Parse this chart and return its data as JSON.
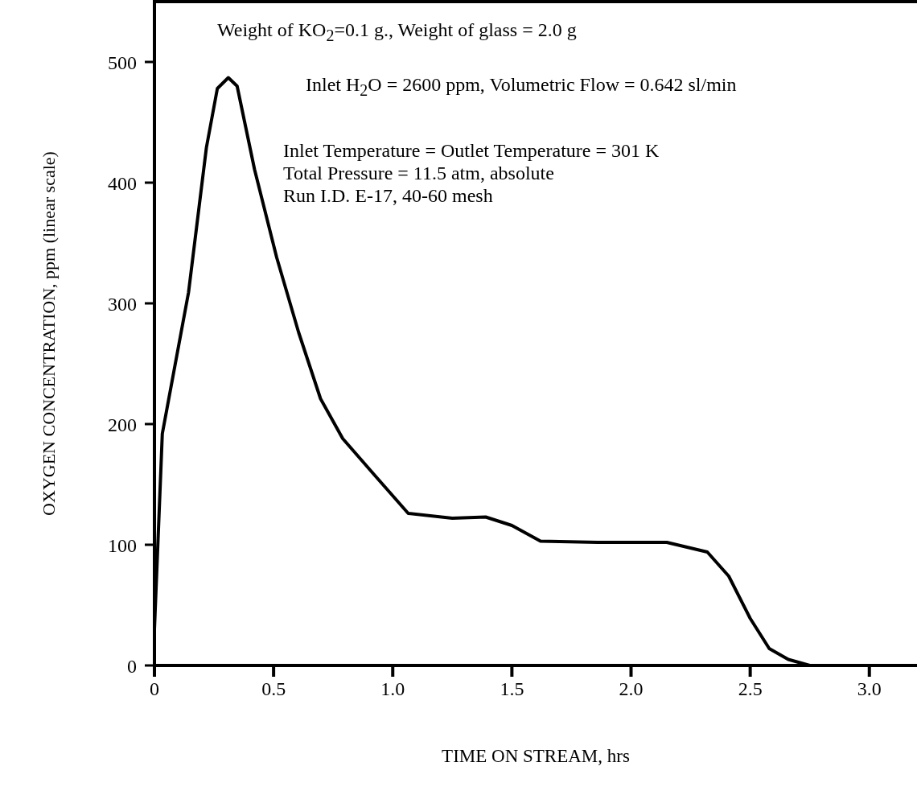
{
  "chart_data": {
    "type": "line",
    "xlabel": "TIME ON STREAM, hrs",
    "ylabel": "OXYGEN CONCENTRATION, ppm (linear scale)",
    "annotations": [
      "Weight of KO$_{2}$=0.1 g., Weight of glass = 2.0 g",
      "Inlet H$_{2}$O = 2600 ppm, Volumetric Flow = 0.642 sl/min",
      "Inlet Temperature = Outlet Temperature = 301 K",
      "Total Pressure = 11.5 atm, absolute",
      "Run I.D. E-17, 40-60 mesh"
    ],
    "x": [
      0,
      0.033,
      0.143,
      0.218,
      0.264,
      0.31,
      0.347,
      0.42,
      0.513,
      0.605,
      0.697,
      0.79,
      0.918,
      1.065,
      1.25,
      1.39,
      1.5,
      1.62,
      1.86,
      2.15,
      2.32,
      2.41,
      2.5,
      2.58,
      2.66,
      2.75,
      3.2
    ],
    "series": [
      {
        "color": "#000000",
        "values": [
          30,
          192,
          309,
          429,
          478,
          487,
          480,
          411,
          338,
          276,
          221,
          188,
          159,
          126,
          122,
          123,
          116,
          103,
          102,
          102,
          94,
          74,
          39,
          14,
          5,
          0,
          0
        ]
      }
    ],
    "xlim": [
      0,
      3.2
    ],
    "ylim": [
      0,
      550
    ],
    "xticks": [
      0,
      0.5,
      {
        "value": 1,
        "label": "1.0"
      },
      1.5,
      {
        "value": 2,
        "label": "2.0"
      },
      2.5,
      {
        "value": 3,
        "label": "3.0"
      }
    ],
    "yticks": [
      0,
      100,
      200,
      300,
      400,
      500
    ],
    "marker": "none",
    "line_style": "solid"
  }
}
